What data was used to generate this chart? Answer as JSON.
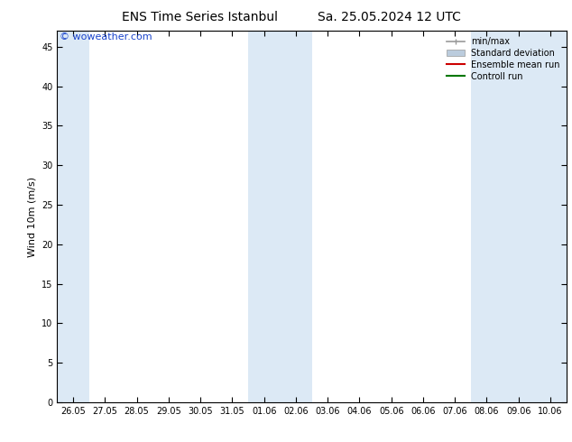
{
  "title_left": "ENS Time Series Istanbul",
  "title_right": "Sa. 25.05.2024 12 UTC",
  "ylabel": "Wind 10m (m/s)",
  "ylim": [
    0,
    47
  ],
  "yticks": [
    0,
    5,
    10,
    15,
    20,
    25,
    30,
    35,
    40,
    45
  ],
  "x_labels": [
    "26.05",
    "27.05",
    "28.05",
    "29.05",
    "30.05",
    "31.05",
    "01.06",
    "02.06",
    "03.06",
    "04.06",
    "05.06",
    "06.06",
    "07.06",
    "08.06",
    "09.06",
    "10.06"
  ],
  "shaded_indices": [
    0,
    6,
    7,
    13,
    14,
    15
  ],
  "band_color": "#dce9f5",
  "bg_color": "#ffffff",
  "watermark": "© woweather.com",
  "watermark_color": "#1a44cc",
  "legend_items": [
    {
      "label": "min/max",
      "color": "#999999",
      "lw": 1.2
    },
    {
      "label": "Standard deviation",
      "color": "#bbccdd",
      "lw": 8
    },
    {
      "label": "Ensemble mean run",
      "color": "#cc0000",
      "lw": 1.5
    },
    {
      "label": "Controll run",
      "color": "#007700",
      "lw": 1.5
    }
  ],
  "title_fontsize": 10,
  "axis_fontsize": 8,
  "tick_fontsize": 7,
  "watermark_fontsize": 8
}
